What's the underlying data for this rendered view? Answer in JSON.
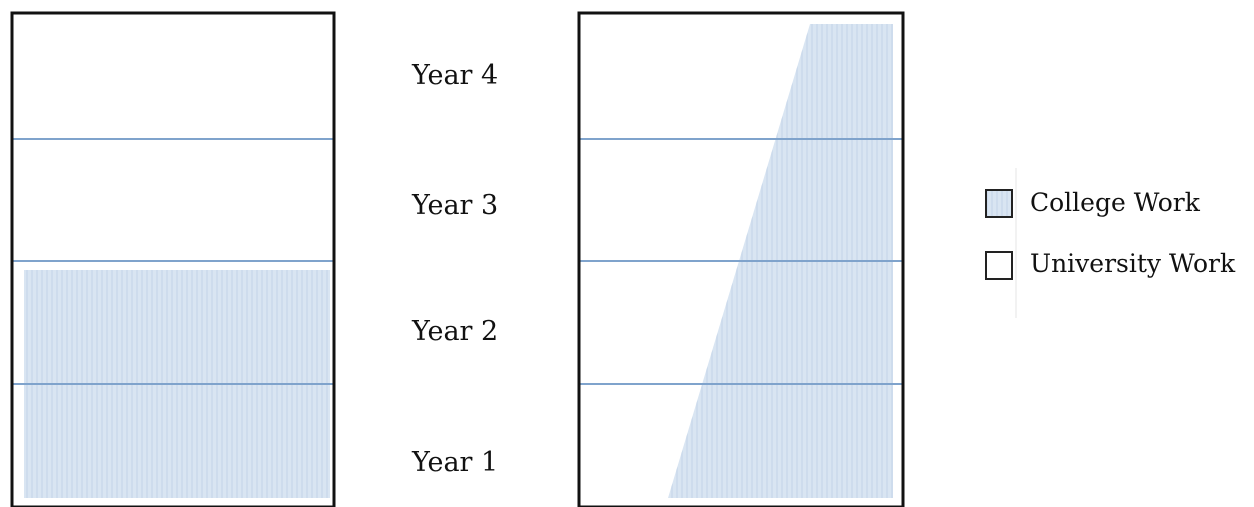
{
  "years": [
    {
      "label": "Year 4"
    },
    {
      "label": "Year 3"
    },
    {
      "label": "Year 2"
    },
    {
      "label": "Year 1"
    }
  ],
  "legend": {
    "college": "College Work",
    "university": "University Work"
  },
  "colors": {
    "college_fill": "#d9e5f2",
    "college_hatch": "#c3d4e8",
    "divider": "#7fa3cc",
    "frame": "#111111"
  },
  "diagrams": [
    {
      "pattern": "block",
      "college_years": 2
    },
    {
      "pattern": "gradient",
      "college_years": 4
    }
  ]
}
